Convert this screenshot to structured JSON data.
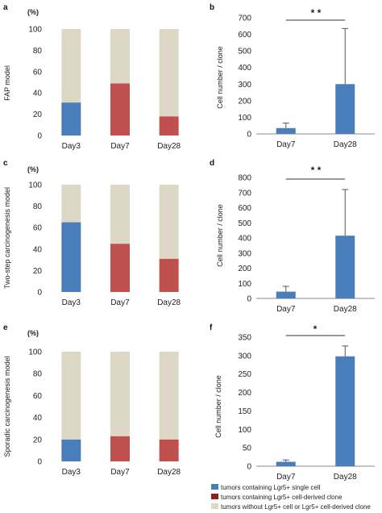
{
  "colors": {
    "single": "#4a7ebb",
    "derived": "#c0504d",
    "without": "#ddd8c6",
    "axis": "#888888",
    "text": "#222222"
  },
  "chart_data": [
    {
      "id": "a",
      "type": "bar",
      "stacked": true,
      "panel_label": "a",
      "ylabel": "FAP model",
      "unit_label": "(%)",
      "categories": [
        "Day3",
        "Day7",
        "Day28"
      ],
      "ylim": [
        0,
        100
      ],
      "yticks": [
        0,
        20,
        40,
        60,
        80,
        100
      ],
      "series": [
        {
          "key": "single",
          "values": [
            31,
            0,
            0
          ]
        },
        {
          "key": "derived",
          "values": [
            0,
            49,
            18
          ]
        },
        {
          "key": "without",
          "values": [
            69,
            51,
            82
          ]
        }
      ]
    },
    {
      "id": "b",
      "type": "bar",
      "panel_label": "b",
      "ylabel": "Cell number / clone",
      "categories": [
        "Day7",
        "Day28"
      ],
      "values": [
        35,
        300
      ],
      "error": [
        30,
        335
      ],
      "ylim": [
        0,
        700
      ],
      "yticks": [
        0,
        100,
        200,
        300,
        400,
        500,
        600,
        700
      ],
      "significance": "* *"
    },
    {
      "id": "c",
      "type": "bar",
      "stacked": true,
      "panel_label": "c",
      "ylabel": "Two-step carcinogenesis model",
      "unit_label": "(%)",
      "categories": [
        "Day3",
        "Day7",
        "Day28"
      ],
      "ylim": [
        0,
        100
      ],
      "yticks": [
        0,
        20,
        40,
        60,
        80,
        100
      ],
      "series": [
        {
          "key": "single",
          "values": [
            65,
            0,
            0
          ]
        },
        {
          "key": "derived",
          "values": [
            0,
            45,
            31
          ]
        },
        {
          "key": "without",
          "values": [
            35,
            55,
            69
          ]
        }
      ]
    },
    {
      "id": "d",
      "type": "bar",
      "panel_label": "d",
      "ylabel": "Cell number / clone",
      "categories": [
        "Day7",
        "Day28"
      ],
      "values": [
        45,
        415
      ],
      "error": [
        35,
        305
      ],
      "ylim": [
        0,
        800
      ],
      "yticks": [
        0,
        100,
        200,
        300,
        400,
        500,
        600,
        700,
        800
      ],
      "significance": "* *"
    },
    {
      "id": "e",
      "type": "bar",
      "stacked": true,
      "panel_label": "e",
      "ylabel": "Sporadic carcinogenesis model",
      "unit_label": "(%)",
      "categories": [
        "Day3",
        "Day7",
        "Day28"
      ],
      "ylim": [
        0,
        100
      ],
      "yticks": [
        0,
        20,
        40,
        60,
        80,
        100
      ],
      "series": [
        {
          "key": "single",
          "values": [
            20,
            0,
            0
          ]
        },
        {
          "key": "derived",
          "values": [
            0,
            23,
            20
          ]
        },
        {
          "key": "without",
          "values": [
            80,
            77,
            80
          ]
        }
      ]
    },
    {
      "id": "f",
      "type": "bar",
      "panel_label": "f",
      "ylabel": "Cell number / clone",
      "categories": [
        "Day7",
        "Day28"
      ],
      "values": [
        12,
        298
      ],
      "error": [
        5,
        28
      ],
      "ylim": [
        0,
        350
      ],
      "yticks": [
        0,
        50,
        100,
        150,
        200,
        250,
        300,
        350
      ],
      "significance": "*"
    }
  ],
  "legend": {
    "entries": [
      {
        "key": "single",
        "label": "tumors containing Lgr5+ single cell"
      },
      {
        "key": "derived",
        "label": "tumors containing Lgr5+ cell-derived clone"
      },
      {
        "key": "without",
        "label": "tumors without Lgr5+ cell or Lgr5+ cell-derived clone"
      }
    ]
  }
}
